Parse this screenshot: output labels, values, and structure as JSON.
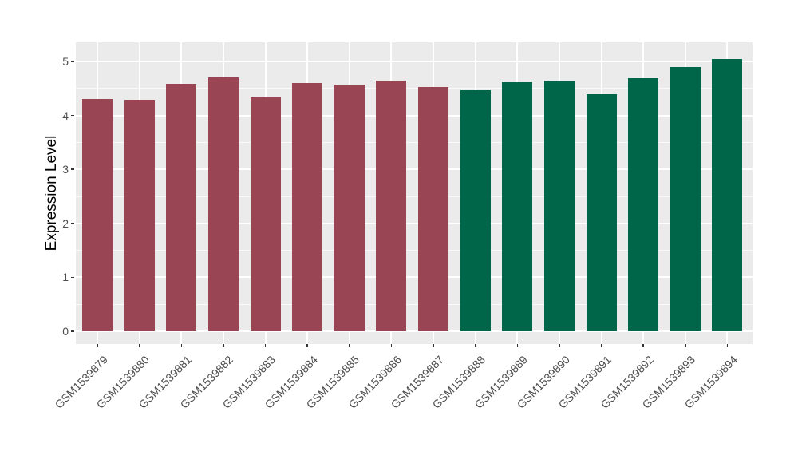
{
  "figure": {
    "background_color": "#ffffff",
    "panel_background_color": "#EBEBEB",
    "gridline_color": "#ffffff",
    "axis_text_color": "#4D4D4D",
    "axis_title_color": "#000000",
    "tick_mark_color": "#333333"
  },
  "chart_data": {
    "type": "bar",
    "title": "",
    "xlabel": "",
    "ylabel": "Expression Level",
    "legend_position": "none",
    "grid": "major and minor horizontal white gridlines, vertical major gridlines at category centers",
    "x_tick_rotation_deg": 45,
    "ylim": [
      0,
      5
    ],
    "yticks": [
      0,
      1,
      2,
      3,
      4,
      5
    ],
    "ytick_labels": [
      "0",
      "1",
      "2",
      "3",
      "4",
      "5"
    ],
    "categories": [
      "GSM1539879",
      "GSM1539880",
      "GSM1539881",
      "GSM1539882",
      "GSM1539883",
      "GSM1539884",
      "GSM1539885",
      "GSM1539886",
      "GSM1539887",
      "GSM1539888",
      "GSM1539889",
      "GSM1539890",
      "GSM1539891",
      "GSM1539892",
      "GSM1539893",
      "GSM1539894"
    ],
    "values": [
      4.3,
      4.29,
      4.59,
      4.7,
      4.34,
      4.6,
      4.57,
      4.64,
      4.53,
      4.47,
      4.62,
      4.64,
      4.4,
      4.69,
      4.89,
      5.04
    ],
    "bar_colors": [
      "#9A4553",
      "#9A4553",
      "#9A4553",
      "#9A4553",
      "#9A4553",
      "#9A4553",
      "#9A4553",
      "#9A4553",
      "#9A4553",
      "#006649",
      "#006649",
      "#006649",
      "#006649",
      "#006649",
      "#006649",
      "#006649"
    ],
    "color_groups": [
      {
        "color": "#9A4553",
        "first_category": "GSM1539879",
        "last_category": "GSM1539887"
      },
      {
        "color": "#006649",
        "first_category": "GSM1539888",
        "last_category": "GSM1539894"
      }
    ]
  }
}
